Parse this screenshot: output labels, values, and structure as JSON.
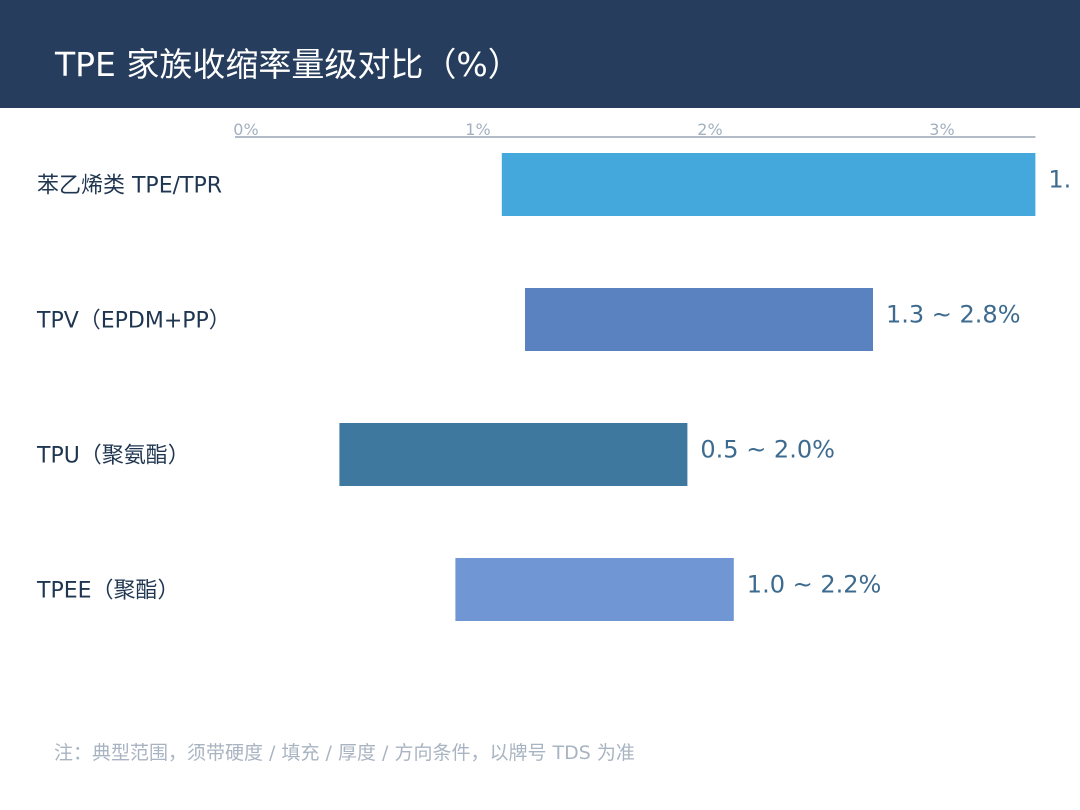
{
  "title": "TPE 家族收缩率量级对比（%）",
  "note": "注：典型范围，须带硬度 / 填充 / 厚度 / 方向条件，以牌号 TDS 为准",
  "chart_data": {
    "type": "bar",
    "orientation": "horizontal",
    "style": "floating-range",
    "categories": [
      "苯乙烯类 TPE/TPR",
      "TPV（EPDM+PP）",
      "TPU（聚氨酯）",
      "TPEE（聚酯）"
    ],
    "ranges": [
      [
        1.15,
        3.45
      ],
      [
        1.25,
        2.75
      ],
      [
        0.45,
        1.95
      ],
      [
        0.95,
        2.15
      ]
    ],
    "data_labels": [
      "1.",
      "1.3 ~ 2.8%",
      "0.5 ~ 2.0%",
      "1.0 ~ 2.2%"
    ],
    "colors": [
      "#45a8dc",
      "#5b82c0",
      "#3f789f",
      "#7097d4"
    ],
    "x_ticks": [
      0,
      1,
      2,
      3
    ],
    "x_tick_labels": [
      "0%",
      "1%",
      "2%",
      "3%"
    ],
    "xlim": [
      0,
      3.45
    ],
    "axis_position": "top",
    "grid": false,
    "legend": "none"
  }
}
